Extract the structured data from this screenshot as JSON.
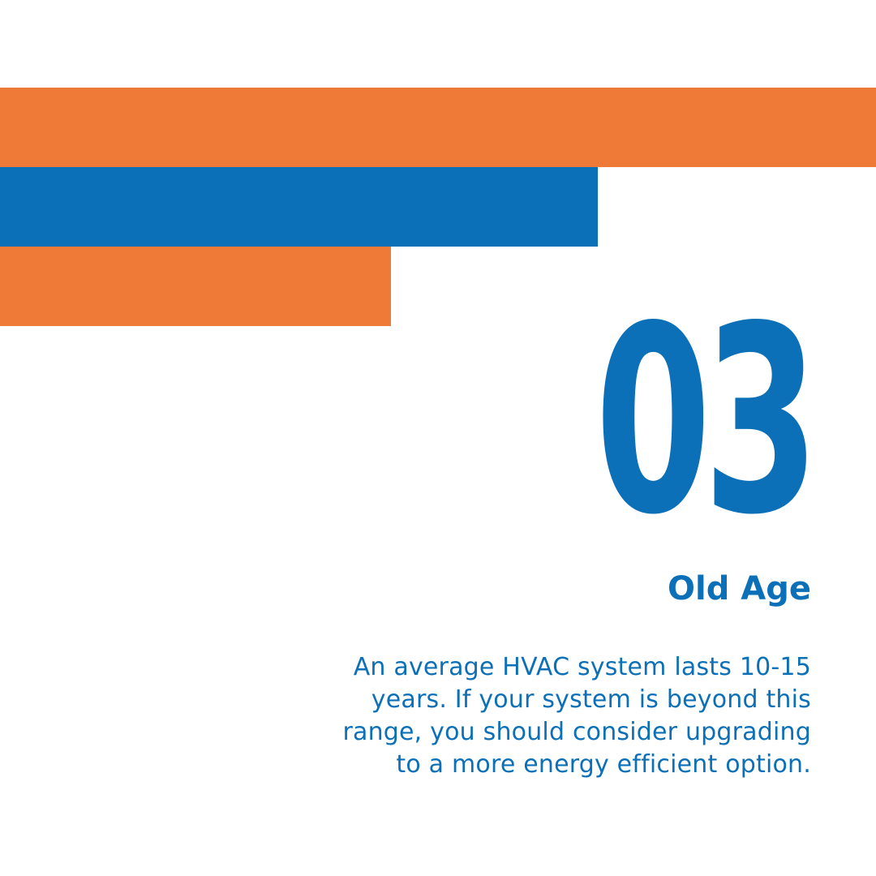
{
  "colors": {
    "orange": "#ef7936",
    "blue": "#0c70b8",
    "background": "#ffffff"
  },
  "decor": {
    "bars": [
      "orange",
      "blue",
      "orange"
    ]
  },
  "number": "03",
  "title": "Old Age",
  "body": {
    "lines": [
      "An average HVAC system lasts 10-15",
      "years. If your system is beyond this",
      "range, you should consider upgrading",
      "to a more energy efficient option."
    ]
  }
}
